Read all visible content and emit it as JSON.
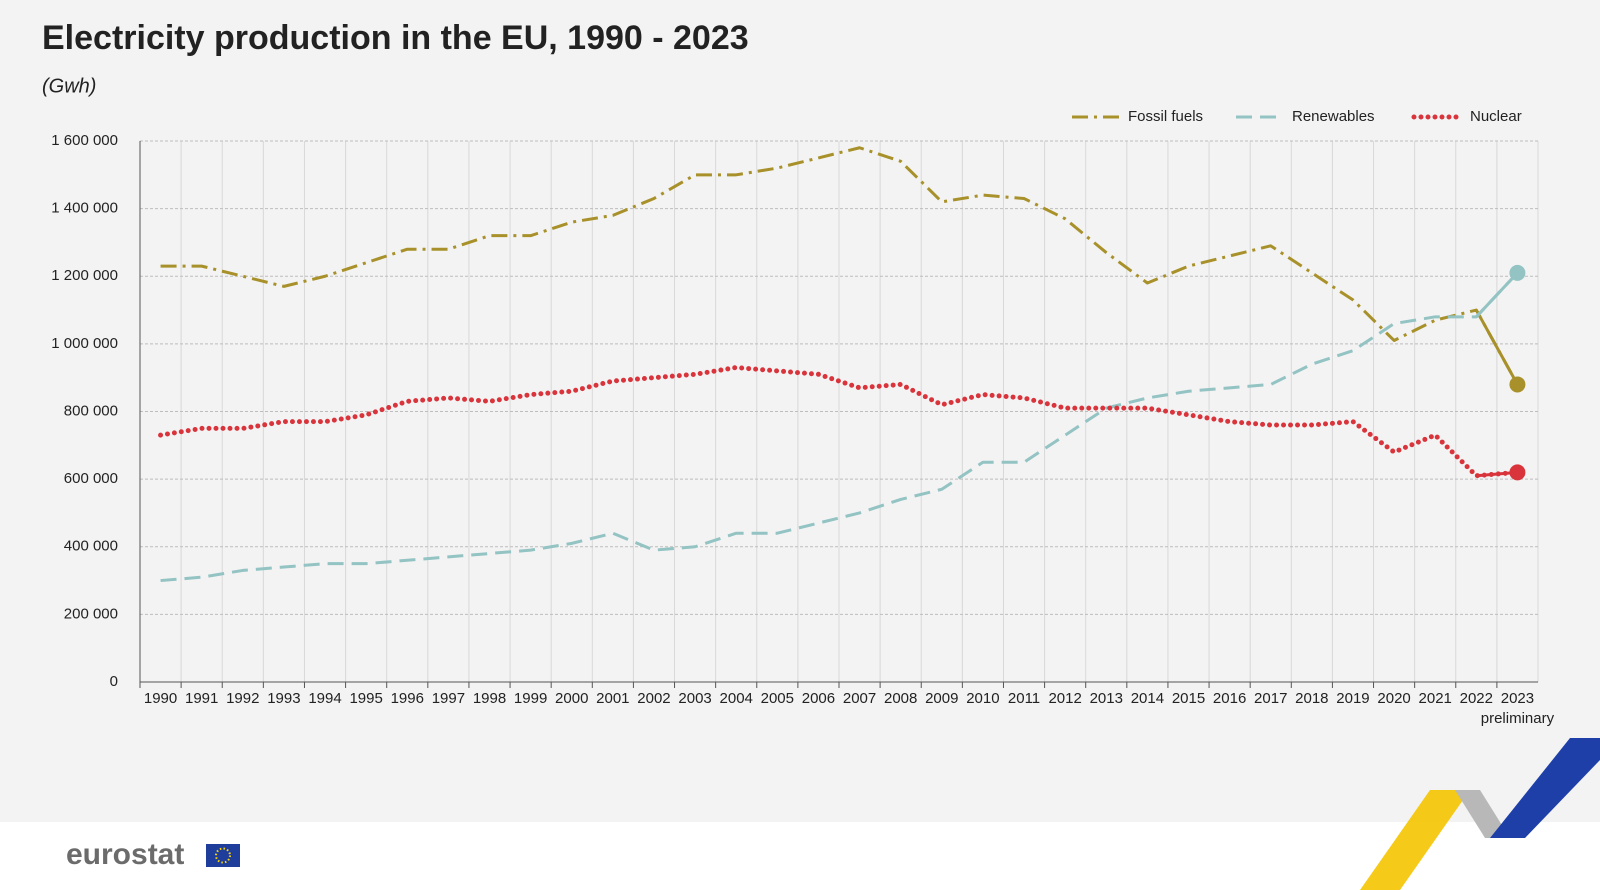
{
  "chart_data": {
    "type": "line",
    "title": "Electricity production in the EU, 1990 - 2023",
    "subtitle": "(Gwh)",
    "annotation": "preliminary",
    "categories": [
      "1990",
      "1991",
      "1992",
      "1993",
      "1994",
      "1995",
      "1996",
      "1997",
      "1998",
      "1999",
      "2000",
      "2001",
      "2002",
      "2003",
      "2004",
      "2005",
      "2006",
      "2007",
      "2008",
      "2009",
      "2010",
      "2011",
      "2012",
      "2013",
      "2014",
      "2015",
      "2016",
      "2017",
      "2018",
      "2019",
      "2020",
      "2021",
      "2022",
      "2023"
    ],
    "series": [
      {
        "name": "Fossil fuels",
        "color": "#a8912a",
        "dash": "dash-dot",
        "values": [
          1230000,
          1230000,
          1200000,
          1170000,
          1200000,
          1240000,
          1280000,
          1280000,
          1320000,
          1320000,
          1360000,
          1380000,
          1430000,
          1500000,
          1500000,
          1520000,
          1550000,
          1580000,
          1540000,
          1420000,
          1440000,
          1430000,
          1370000,
          1270000,
          1180000,
          1230000,
          1260000,
          1290000,
          1210000,
          1130000,
          1010000,
          1070000,
          1100000,
          880000
        ]
      },
      {
        "name": "Renewables",
        "color": "#93c3c3",
        "dash": "dashed",
        "values": [
          300000,
          310000,
          330000,
          340000,
          350000,
          350000,
          360000,
          370000,
          380000,
          390000,
          410000,
          440000,
          390000,
          400000,
          440000,
          440000,
          470000,
          500000,
          540000,
          570000,
          650000,
          650000,
          730000,
          810000,
          840000,
          860000,
          870000,
          880000,
          940000,
          980000,
          1060000,
          1080000,
          1080000,
          1210000
        ]
      },
      {
        "name": "Nuclear",
        "color": "#d9343b",
        "dash": "dotted",
        "values": [
          730000,
          750000,
          750000,
          770000,
          770000,
          790000,
          830000,
          840000,
          830000,
          850000,
          860000,
          890000,
          900000,
          910000,
          930000,
          920000,
          910000,
          870000,
          880000,
          820000,
          850000,
          840000,
          810000,
          810000,
          810000,
          790000,
          770000,
          760000,
          760000,
          770000,
          680000,
          730000,
          610000,
          620000
        ]
      }
    ],
    "ylim": [
      0,
      1600000
    ],
    "yticks": [
      0,
      {
        "value": 200000,
        "label": "200 000"
      },
      {
        "value": 400000,
        "label": "400 000"
      },
      {
        "value": 600000,
        "label": "600 000"
      },
      {
        "value": 800000,
        "label": "800 000"
      },
      {
        "value": 1000000,
        "label": "1 000 000"
      },
      {
        "value": 1200000,
        "label": "1 200 000"
      },
      {
        "value": 1400000,
        "label": "1 400 000"
      },
      {
        "value": 1600000,
        "label": "1 600 000"
      }
    ],
    "grid": true,
    "legend": "top-right",
    "footer": "eurostat"
  }
}
